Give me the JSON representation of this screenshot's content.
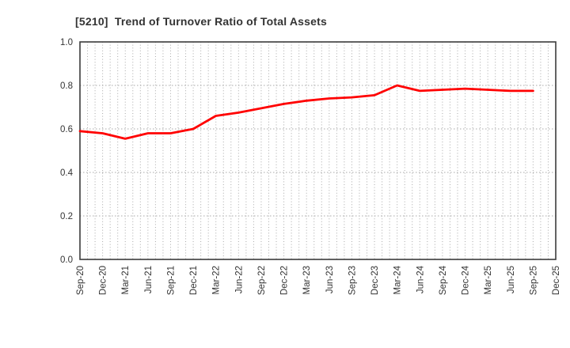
{
  "page": {
    "background": "#ffffff"
  },
  "chart_data": {
    "type": "line",
    "title": "[5210]  Trend of Turnover Ratio of Total Assets",
    "xlabel": "",
    "ylabel": "",
    "x_tick_labels": [
      "Sep-20",
      "Dec-20",
      "Mar-21",
      "Jun-21",
      "Sep-21",
      "Dec-21",
      "Mar-22",
      "Jun-22",
      "Sep-22",
      "Dec-22",
      "Mar-23",
      "Jun-23",
      "Sep-23",
      "Dec-23",
      "Mar-24",
      "Jun-24",
      "Sep-24",
      "Dec-24",
      "Mar-25",
      "Jun-25",
      "Sep-25",
      "Dec-25"
    ],
    "y_ticks": [
      0.0,
      0.2,
      0.4,
      0.6,
      0.8,
      1.0
    ],
    "ylim": [
      0.0,
      1.0
    ],
    "grid": true,
    "minor_vertical_grid": "monthly",
    "legend_position": "none",
    "series": [
      {
        "name": "Turnover Ratio of Total Assets",
        "color": "#ff0000",
        "x": [
          "Sep-20",
          "Dec-20",
          "Mar-21",
          "Jun-21",
          "Sep-21",
          "Dec-21",
          "Mar-22",
          "Jun-22",
          "Sep-22",
          "Dec-22",
          "Mar-23",
          "Jun-23",
          "Sep-23",
          "Dec-23",
          "Mar-24",
          "Jun-24",
          "Sep-24",
          "Dec-24",
          "Mar-25",
          "Jun-25",
          "Sep-25"
        ],
        "values": [
          0.59,
          0.58,
          0.555,
          0.58,
          0.58,
          0.6,
          0.66,
          0.675,
          0.695,
          0.715,
          0.73,
          0.74,
          0.745,
          0.755,
          0.8,
          0.775,
          0.78,
          0.785,
          0.78,
          0.775,
          0.775
        ]
      }
    ],
    "colors": {
      "line": "#ff0000",
      "axis": "#3c3c3c",
      "grid": "#a8a8a8",
      "tick_label": "#333333",
      "title": "#333333",
      "plot_background": "#ffffff"
    }
  }
}
